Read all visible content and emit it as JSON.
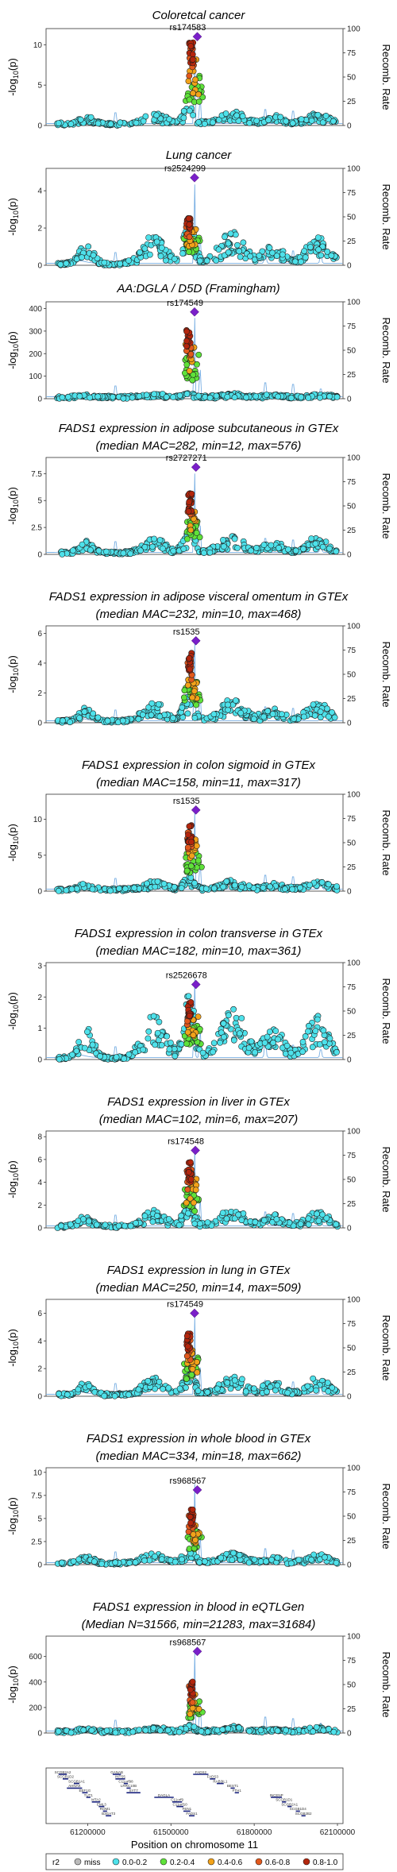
{
  "colors": {
    "miss": "#bbbbbb",
    "r2_0_0.2": "#4ee1ea",
    "r2_0.2_0.4": "#5fe23a",
    "r2_0.4_0.6": "#f2a21a",
    "r2_0.6_0.8": "#e2591d",
    "r2_0.8_1.0": "#b3260d",
    "lead": "#7a1fc9",
    "recomb": "#6aa6e0"
  },
  "chart_data": [
    {
      "type": "scatter",
      "title_lines": [
        "Coloretcal cancer"
      ],
      "lead_snp": "rs174583",
      "ylabel": "-log10(p)",
      "y2label": "Recomb. Rate",
      "ylim": [
        0,
        12
      ],
      "yticks": [
        0,
        5,
        10
      ],
      "y2lim": [
        0,
        100
      ],
      "y2ticks": [
        0,
        25,
        50,
        75,
        100
      ],
      "lead_pos": 61595000,
      "lead_y": 11,
      "peak_height": 1.0,
      "bg_scale": 0.17
    },
    {
      "type": "scatter",
      "title_lines": [
        "Lung cancer"
      ],
      "lead_snp": "rs2524299",
      "ylabel": "-log10(p)",
      "y2label": "Recomb. Rate",
      "ylim": [
        0,
        5.2
      ],
      "yticks": [
        0,
        2,
        4
      ],
      "y2lim": [
        0,
        100
      ],
      "y2ticks": [
        0,
        25,
        50,
        75,
        100
      ],
      "lead_pos": 61585000,
      "lead_y": 4.7,
      "peak_height": 0.55,
      "bg_scale": 0.45
    },
    {
      "type": "scatter",
      "title_lines": [
        "AA:DGLA / D5D (Framingham)"
      ],
      "lead_snp": "rs174549",
      "ylabel": "-log10(p)",
      "y2label": "Recomb. Rate",
      "ylim": [
        0,
        430
      ],
      "yticks": [
        0,
        100,
        200,
        300,
        400
      ],
      "y2lim": [
        0,
        100
      ],
      "y2ticks": [
        0,
        25,
        50,
        75,
        100
      ],
      "lead_pos": 61585000,
      "lead_y": 385,
      "peak_height": 0.85,
      "bg_scale": 0.04
    },
    {
      "type": "scatter",
      "title_lines": [
        "FADS1 expression in adipose subcutaneous in GTEx",
        "(median MAC=282, min=12, max=576)"
      ],
      "lead_snp": "rs2727271",
      "ylabel": "-log10(p)",
      "y2label": "Recomb. Rate",
      "ylim": [
        0,
        9
      ],
      "yticks": [
        0,
        2.5,
        5,
        7.5
      ],
      "y2lim": [
        0,
        100
      ],
      "y2ticks": [
        0,
        25,
        50,
        75,
        100
      ],
      "lead_pos": 61590000,
      "lead_y": 8.1,
      "peak_height": 0.7,
      "bg_scale": 0.24
    },
    {
      "type": "scatter",
      "title_lines": [
        "FADS1 expression in adipose visceral omentum in GTEx",
        "(median MAC=232, min=10, max=468)"
      ],
      "lead_snp": "rs1535",
      "ylabel": "-log10(p)",
      "y2label": "Recomb. Rate",
      "ylim": [
        0,
        6.5
      ],
      "yticks": [
        0,
        2,
        4,
        6
      ],
      "y2lim": [
        0,
        100
      ],
      "y2ticks": [
        0,
        25,
        50,
        75,
        100
      ],
      "lead_pos": 61590000,
      "lead_y": 5.5,
      "peak_height": 0.85,
      "bg_scale": 0.3
    },
    {
      "type": "scatter",
      "title_lines": [
        "FADS1 expression in colon sigmoid in GTEx",
        "(median MAC=158, min=11, max=317)"
      ],
      "lead_snp": "rs1535",
      "ylabel": "-log10(p)",
      "y2label": "Recomb. Rate",
      "ylim": [
        0,
        13.5
      ],
      "yticks": [
        0,
        5,
        10
      ],
      "y2lim": [
        0,
        100
      ],
      "y2ticks": [
        0,
        25,
        50,
        75,
        100
      ],
      "lead_pos": 61590000,
      "lead_y": 11.3,
      "peak_height": 0.85,
      "bg_scale": 0.13
    },
    {
      "type": "scatter",
      "title_lines": [
        "FADS1 expression in colon transverse in GTEx",
        "(median MAC=182, min=10, max=361)"
      ],
      "lead_snp": "rs2526678",
      "ylabel": "-log10(p)",
      "y2label": "Recomb. Rate",
      "ylim": [
        0,
        3.1
      ],
      "yticks": [
        0,
        1,
        2,
        3
      ],
      "y2lim": [
        0,
        100
      ],
      "y2ticks": [
        0,
        25,
        50,
        75,
        100
      ],
      "lead_pos": 61590000,
      "lead_y": 2.4,
      "peak_height": 0.8,
      "bg_scale": 0.7
    },
    {
      "type": "scatter",
      "title_lines": [
        "FADS1 expression in liver in GTEx",
        "(median MAC=102, min=6, max=207)"
      ],
      "lead_snp": "rs174548",
      "ylabel": "-log10(p)",
      "y2label": "Recomb. Rate",
      "ylim": [
        0,
        8.5
      ],
      "yticks": [
        0,
        2,
        4,
        6,
        8
      ],
      "y2lim": [
        0,
        100
      ],
      "y2ticks": [
        0,
        25,
        50,
        75,
        100
      ],
      "lead_pos": 61588000,
      "lead_y": 6.8,
      "peak_height": 0.85,
      "bg_scale": 0.25
    },
    {
      "type": "scatter",
      "title_lines": [
        "FADS1 expression in lung in GTEx",
        "(median MAC=250, min=14, max=509)"
      ],
      "lead_snp": "rs174549",
      "ylabel": "-log10(p)",
      "y2label": "Recomb. Rate",
      "ylim": [
        0,
        7
      ],
      "yticks": [
        0,
        2,
        4,
        6
      ],
      "y2lim": [
        0,
        100
      ],
      "y2ticks": [
        0,
        25,
        50,
        75,
        100
      ],
      "lead_pos": 61585000,
      "lead_y": 6.0,
      "peak_height": 0.8,
      "bg_scale": 0.28
    },
    {
      "type": "scatter",
      "title_lines": [
        "FADS1 expression in whole blood in GTEx",
        "(median MAC=334, min=18, max=662)"
      ],
      "lead_snp": "rs968567",
      "ylabel": "-log10(p)",
      "y2label": "Recomb. Rate",
      "ylim": [
        0,
        10.5
      ],
      "yticks": [
        0,
        2.5,
        5,
        7.5,
        10
      ],
      "y2lim": [
        0,
        100
      ],
      "y2ticks": [
        0,
        25,
        50,
        75,
        100
      ],
      "lead_pos": 61595000,
      "lead_y": 8.1,
      "peak_height": 0.75,
      "bg_scale": 0.15
    },
    {
      "type": "scatter",
      "title_lines": [
        "FADS1 expression in blood in eQTLGen",
        "(Median N=31566, min=21283, max=31684)"
      ],
      "lead_snp": "rs968567",
      "ylabel": "-log10(p)",
      "y2label": "Recomb. Rate",
      "ylim": [
        0,
        760
      ],
      "yticks": [
        0,
        200,
        400,
        600
      ],
      "y2lim": [
        0,
        100
      ],
      "y2ticks": [
        0,
        25,
        50,
        75,
        100
      ],
      "lead_pos": 61595000,
      "lead_y": 640,
      "peak_height": 0.65,
      "bg_scale": 0.06
    }
  ],
  "xaxis": {
    "label": "Position on chromosome 11",
    "xlim": [
      61050000,
      62120000
    ],
    "ticks": [
      61200000,
      61500000,
      61800000,
      62100000
    ],
    "tick_labels": [
      "61200000",
      "61500000",
      "61800000",
      "62100000"
    ]
  },
  "genes": [
    {
      "name": "SCGB2A2",
      "start": 61095000,
      "end": 61125000,
      "row": 0
    },
    {
      "name": "SCGB1D2",
      "start": 61110000,
      "end": 61130000,
      "row": 1
    },
    {
      "name": "SCGB1A1",
      "start": 61150000,
      "end": 61170000,
      "row": 2
    },
    {
      "name": "AHNAK",
      "start": 61125000,
      "end": 61180000,
      "row": 3
    },
    {
      "name": "EEF1G",
      "start": 61180000,
      "end": 61200000,
      "row": 4
    },
    {
      "name": "TUT1",
      "start": 61195000,
      "end": 61210000,
      "row": 5
    },
    {
      "name": "MTA2",
      "start": 61215000,
      "end": 61245000,
      "row": 6
    },
    {
      "name": "EML3",
      "start": 61240000,
      "end": 61260000,
      "row": 7
    },
    {
      "name": "ROM1",
      "start": 61255000,
      "end": 61270000,
      "row": 8
    },
    {
      "name": "B3GAT3",
      "start": 61265000,
      "end": 61285000,
      "row": 9
    },
    {
      "name": "GANAB",
      "start": 61290000,
      "end": 61320000,
      "row": 10
    },
    {
      "name": "INTS5",
      "start": 61300000,
      "end": 61335000,
      "row": 11
    },
    {
      "name": "C11orf98",
      "start": 61330000,
      "end": 61345000,
      "row": 12
    },
    {
      "name": "LRRC10B",
      "start": 61340000,
      "end": 61355000,
      "row": 13
    },
    {
      "name": "SYT7",
      "start": 61340000,
      "end": 61390000,
      "row": 14
    },
    {
      "name": "DAGLA",
      "start": 61440000,
      "end": 61510000,
      "row": 15
    },
    {
      "name": "C11orf9",
      "start": 61505000,
      "end": 61540000,
      "row": 16
    },
    {
      "name": "C11orf10",
      "start": 61520000,
      "end": 61545000,
      "row": 17
    },
    {
      "name": "FEN1",
      "start": 61545000,
      "end": 61570000,
      "row": 18
    },
    {
      "name": "FADS1",
      "start": 61565000,
      "end": 61585000,
      "row": 19
    },
    {
      "name": "FADS2",
      "start": 61580000,
      "end": 61635000,
      "row": 20
    },
    {
      "name": "FADS3",
      "start": 61640000,
      "end": 61660000,
      "row": 21
    },
    {
      "name": "RAB3IL1",
      "start": 61665000,
      "end": 61690000,
      "row": 22
    },
    {
      "name": "BEST1",
      "start": 61715000,
      "end": 61730000,
      "row": 23
    },
    {
      "name": "FTH1",
      "start": 61730000,
      "end": 61745000,
      "row": 24
    },
    {
      "name": "INCENP",
      "start": 61860000,
      "end": 61900000,
      "row": 25
    },
    {
      "name": "SCGB1D1",
      "start": 61900000,
      "end": 61915000,
      "row": 26
    },
    {
      "name": "SCGB2A1",
      "start": 61920000,
      "end": 61935000,
      "row": 27
    },
    {
      "name": "SCGB1D4",
      "start": 61950000,
      "end": 61965000,
      "row": 28
    },
    {
      "name": "SCGB2B2",
      "start": 61970000,
      "end": 61985000,
      "row": 29
    }
  ],
  "legend": {
    "title": "r2",
    "items": [
      "miss",
      "0.0-0.2",
      "0.2-0.4",
      "0.4-0.6",
      "0.6-0.8",
      "0.8-1.0"
    ]
  }
}
